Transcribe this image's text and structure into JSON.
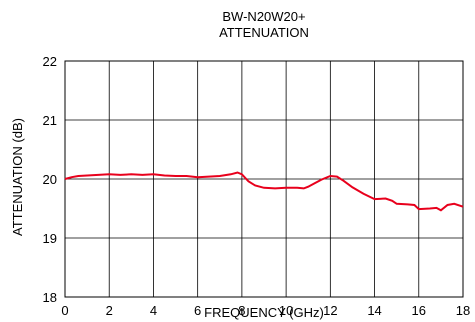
{
  "chart_data": {
    "type": "line",
    "title": "BW-N20W20+",
    "subtitle": "ATTENUATION",
    "xlabel": "FREQUENCY (GHz)",
    "ylabel": "ATTENUATION (dB)",
    "xlim": [
      0,
      18
    ],
    "ylim": [
      18,
      22
    ],
    "x_ticks": [
      "0",
      "2",
      "4",
      "6",
      "8",
      "10",
      "12",
      "14",
      "16",
      "18"
    ],
    "y_ticks": [
      "18",
      "19",
      "20",
      "21",
      "22"
    ],
    "grid": true,
    "colors": {
      "series": "#e8001c",
      "grid": "#000000",
      "frame": "#000000"
    },
    "series": [
      {
        "x": [
          0,
          0.3,
          0.6,
          1.0,
          1.5,
          2.0,
          2.5,
          3.0,
          3.5,
          4.0,
          4.5,
          5.0,
          5.5,
          6.0,
          6.5,
          7.0,
          7.5,
          7.8,
          8.0,
          8.3,
          8.6,
          9.0,
          9.5,
          10.0,
          10.5,
          10.8,
          11.0,
          11.3,
          11.6,
          12.0,
          12.3,
          12.6,
          13.0,
          13.5,
          14.0,
          14.5,
          14.8,
          15.0,
          15.5,
          15.8,
          16.0,
          16.5,
          16.8,
          17.0,
          17.3,
          17.6,
          18.0
        ],
        "y": [
          20.0,
          20.03,
          20.05,
          20.06,
          20.07,
          20.08,
          20.07,
          20.08,
          20.07,
          20.08,
          20.06,
          20.05,
          20.05,
          20.03,
          20.04,
          20.05,
          20.08,
          20.11,
          20.08,
          19.96,
          19.89,
          19.85,
          19.84,
          19.85,
          19.85,
          19.84,
          19.87,
          19.93,
          19.99,
          20.05,
          20.04,
          19.97,
          19.86,
          19.75,
          19.66,
          19.67,
          19.63,
          19.58,
          19.57,
          19.56,
          19.49,
          19.5,
          19.51,
          19.47,
          19.56,
          19.58,
          19.53
        ]
      }
    ]
  }
}
